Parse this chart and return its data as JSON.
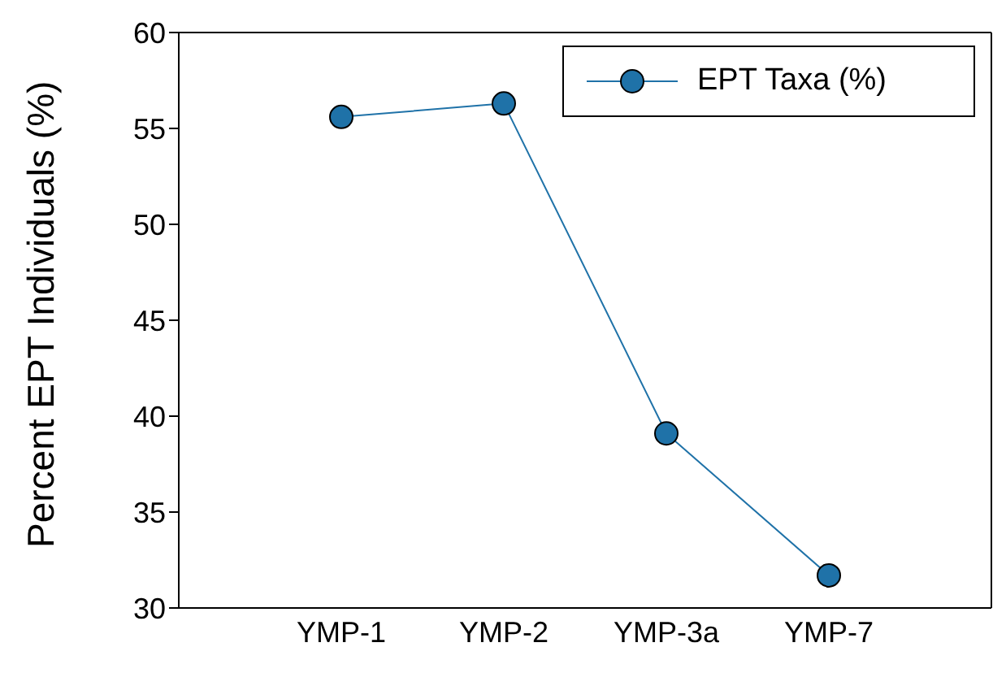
{
  "chart_data": {
    "type": "line",
    "ylabel": "Percent EPT Individuals (%)",
    "categories": [
      "YMP-1",
      "YMP-2",
      "YMP-3a",
      "YMP-7"
    ],
    "series": [
      {
        "name": "EPT Taxa (%)",
        "color": "#1f72a8",
        "values": [
          55.6,
          56.3,
          39.1,
          31.7
        ]
      }
    ],
    "ylim": [
      30,
      60
    ],
    "yticks": [
      30,
      35,
      40,
      45,
      50,
      55,
      60
    ],
    "legend": "top right",
    "marker": "circle",
    "line_style": "solid"
  }
}
